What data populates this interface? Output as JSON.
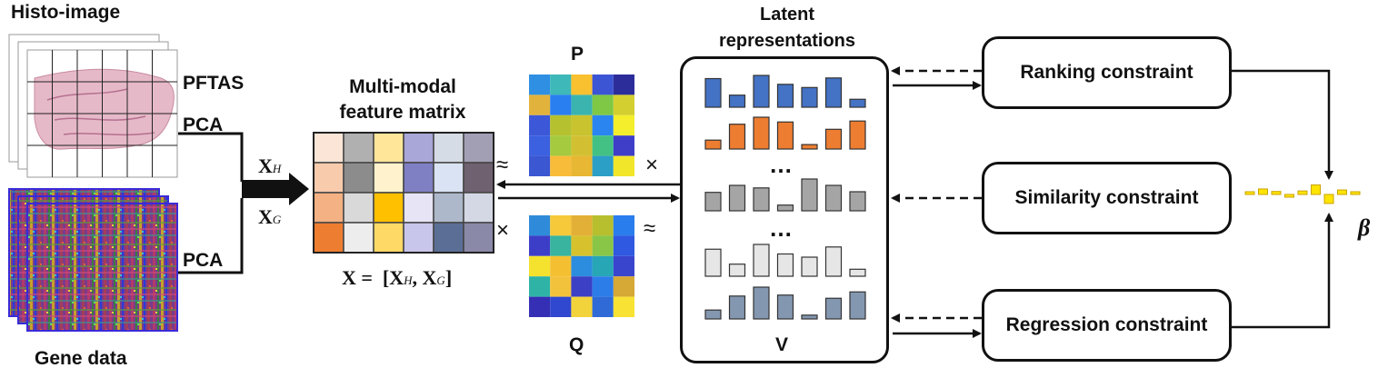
{
  "labels": {
    "histo_title": "Histo-image",
    "gene_title": "Gene data",
    "pftas": "PFTAS",
    "pca_histo": "PCA",
    "pca_gene": "PCA",
    "xh_main": "X",
    "xh_sub": "H",
    "xg_main": "X",
    "xg_sub": "G",
    "matrix_title_line1": "Multi-modal",
    "matrix_title_line2": "feature matrix",
    "matrix_eq": "X =  [X",
    "matrix_eq_sub1": "H",
    "matrix_eq_mid": ", X",
    "matrix_eq_sub2": "G",
    "matrix_eq_end": "]",
    "p_label": "P",
    "q_label": "Q",
    "approx_left": "≈",
    "times_left": "×",
    "times_right": "×",
    "approx_right": "≈",
    "latent_line1": "Latent",
    "latent_line2": "representations",
    "v_label": "V",
    "dots_top": "…",
    "dots_bottom": "…",
    "beta": "β"
  },
  "constraints": {
    "ranking": "Ranking constraint",
    "similarity": "Similarity constraint",
    "regression": "Regression constraint"
  },
  "colors": {
    "blue_bar": "#4472c4",
    "orange_bar": "#ed7d31",
    "gray_bar": "#a5a5a5",
    "light_bar": "#e7e6e6",
    "slate_bar": "#8497b0",
    "beta_yellow": "#ffe400",
    "gene_purple": "#3a2ad8"
  },
  "feature_matrix_colors": [
    [
      "#fbe5d6",
      "#b0b0b0",
      "#ffe699",
      "#a9a6d8",
      "#d6dce5",
      "#a29fb5"
    ],
    [
      "#f8cbad",
      "#8c8c8c",
      "#fff2cc",
      "#7f7fc4",
      "#dae3f3",
      "#6f6170"
    ],
    [
      "#f4b183",
      "#d9d9d9",
      "#ffc000",
      "#e6e4f5",
      "#adb9ca",
      "#d4d8e4"
    ],
    [
      "#ed7d31",
      "#ededed",
      "#ffd966",
      "#c8c6ea",
      "#5b6f96",
      "#8b89a8"
    ]
  ],
  "p_matrix_colors": [
    [
      "#2e8fe3",
      "#3eb8b8",
      "#f9c130",
      "#3c55d4",
      "#2c2d9a"
    ],
    [
      "#e2b33c",
      "#2a7ff0",
      "#3bb4b0",
      "#7fc845",
      "#d4cf30"
    ],
    [
      "#3c58d8",
      "#b5c12e",
      "#c9c32f",
      "#2a85f0",
      "#f4ee2c"
    ],
    [
      "#3b60e0",
      "#a5ca3f",
      "#d2c032",
      "#43c184",
      "#3e3ec9"
    ],
    [
      "#3b57d2",
      "#f8bc3a",
      "#e8b733",
      "#2c9fc6",
      "#f2e62b"
    ]
  ],
  "q_matrix_colors": [
    [
      "#2f8bd9",
      "#f6c93a",
      "#e3b037",
      "#b7bf2f",
      "#2a7dec"
    ],
    [
      "#3d3ec7",
      "#38b49f",
      "#d7c22e",
      "#89c648",
      "#2f59e0"
    ],
    [
      "#f4e22f",
      "#f4c032",
      "#2c8dde",
      "#27a6b6",
      "#3a45ce"
    ],
    [
      "#2fb3a7",
      "#f3c23c",
      "#3b40c5",
      "#2d7de8",
      "#d6a835"
    ],
    [
      "#352fb5",
      "#3047cf",
      "#f3d33b",
      "#2f6ad6",
      "#f8e233"
    ]
  ],
  "latent_bars": [
    {
      "color": "blue",
      "values": [
        0.9,
        0.38,
        1.0,
        0.72,
        0.62,
        0.92,
        0.25
      ]
    },
    {
      "color": "orange",
      "values": [
        0.28,
        0.78,
        1.0,
        0.85,
        0.14,
        0.62,
        0.88
      ]
    },
    {
      "color": "gray",
      "values": [
        0.58,
        0.8,
        0.72,
        0.18,
        1.0,
        0.8,
        0.6
      ]
    },
    {
      "color": "light",
      "values": [
        0.85,
        0.38,
        1.0,
        0.7,
        0.6,
        0.92,
        0.22
      ]
    },
    {
      "color": "slate",
      "values": [
        0.28,
        0.72,
        1.0,
        0.75,
        0.12,
        0.65,
        0.85
      ]
    }
  ],
  "beta_values": [
    0.2,
    0.55,
    0.3,
    -0.1,
    0.35,
    0.95,
    -0.9,
    0.45,
    0.25
  ]
}
